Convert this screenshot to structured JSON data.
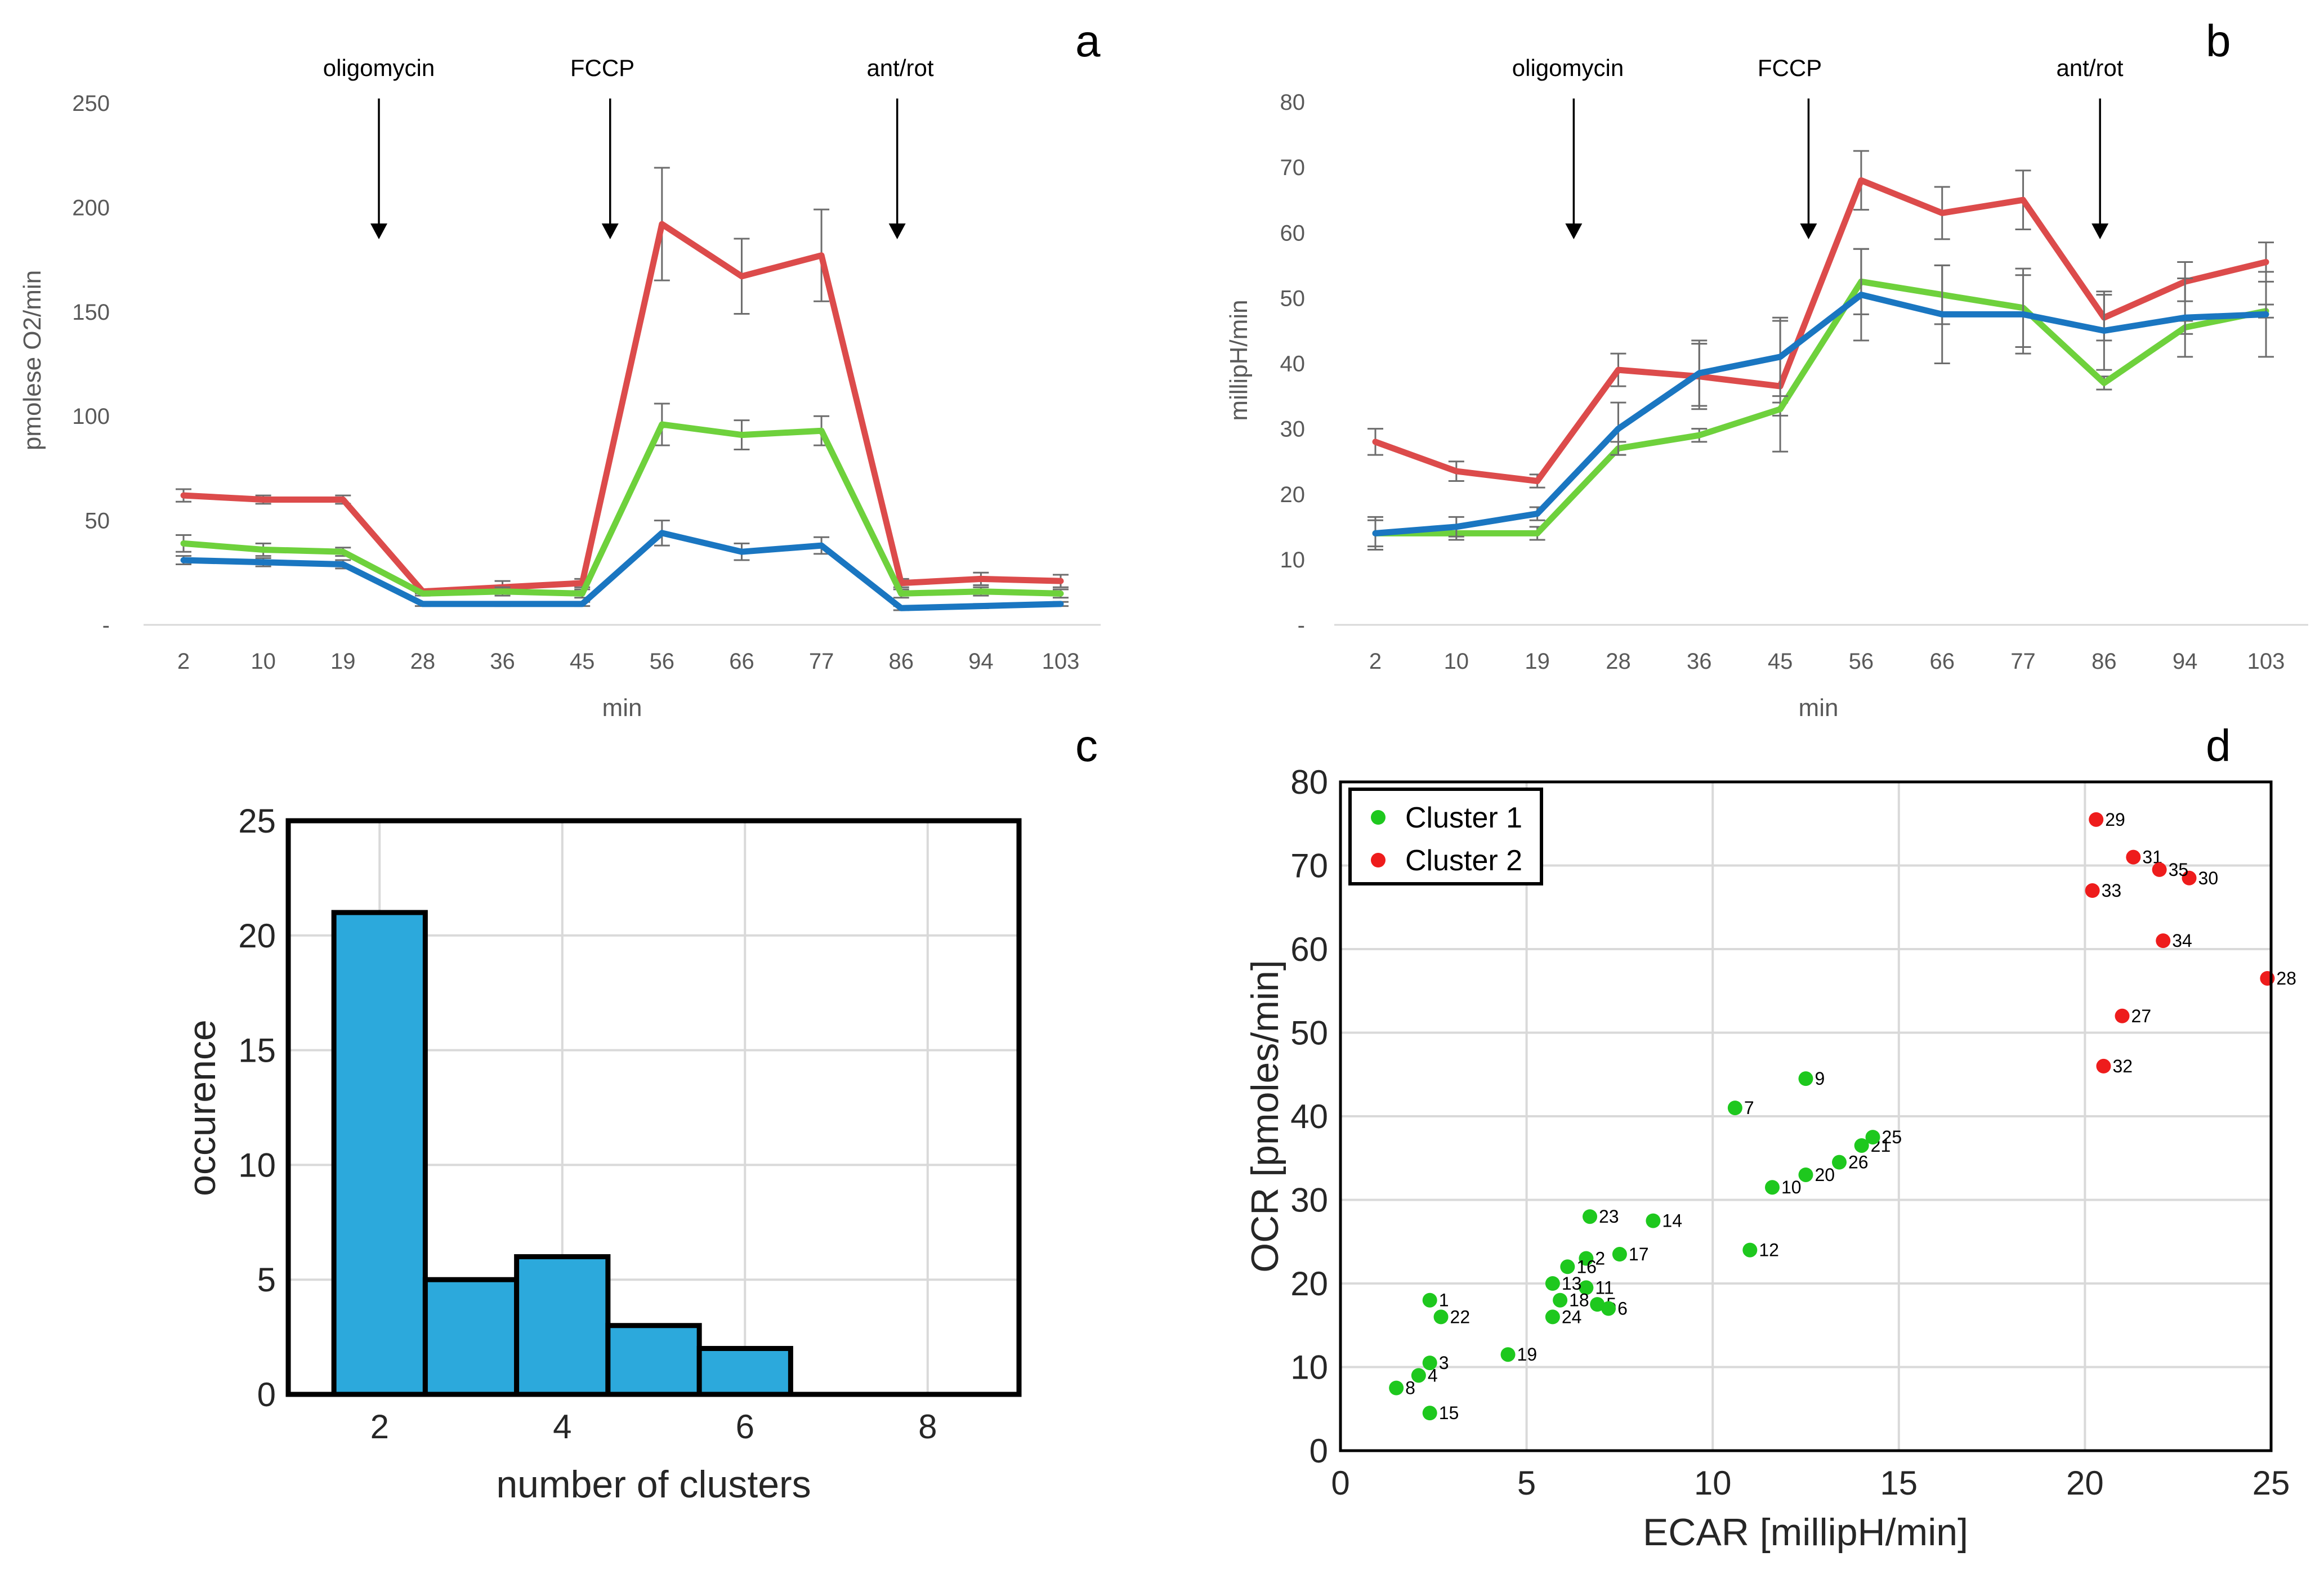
{
  "chart_data": [
    {
      "panel": "a",
      "type": "line",
      "xlabel": "min",
      "ylabel": "pmolese O2/min",
      "categories": [
        "2",
        "10",
        "19",
        "28",
        "36",
        "45",
        "56",
        "66",
        "77",
        "86",
        "94",
        "103"
      ],
      "ylim": [
        0,
        250
      ],
      "yticks": [
        "-",
        "50",
        "100",
        "150",
        "200",
        "250"
      ],
      "annotations": [
        "oligomycin",
        "FCCP",
        "ant/rot"
      ],
      "series": [
        {
          "color": "#dc4b4b",
          "values": [
            62,
            60,
            60,
            16,
            18,
            20,
            192,
            167,
            177,
            20,
            22,
            21
          ],
          "errors": [
            3,
            2,
            2,
            1,
            3,
            2,
            27,
            18,
            22,
            2,
            3,
            3
          ]
        },
        {
          "color": "#6ed13c",
          "values": [
            39,
            36,
            35,
            15,
            16,
            15,
            96,
            91,
            93,
            15,
            16,
            15
          ],
          "errors": [
            4,
            3,
            2,
            1,
            2,
            2,
            10,
            7,
            7,
            2,
            2,
            2
          ]
        },
        {
          "color": "#1a76c1",
          "values": [
            31,
            30,
            29,
            10,
            10,
            10,
            44,
            35,
            38,
            8,
            9,
            10
          ],
          "errors": [
            2,
            2,
            2,
            1,
            1,
            1,
            6,
            4,
            4,
            1,
            1,
            1
          ]
        }
      ]
    },
    {
      "panel": "b",
      "type": "line",
      "xlabel": "min",
      "ylabel": "millipH/min",
      "categories": [
        "2",
        "10",
        "19",
        "28",
        "36",
        "45",
        "56",
        "66",
        "77",
        "86",
        "94",
        "103"
      ],
      "ylim": [
        0,
        80
      ],
      "yticks": [
        "-",
        "10",
        "20",
        "30",
        "40",
        "50",
        "60",
        "70",
        "80"
      ],
      "annotations": [
        "oligomycin",
        "FCCP",
        "ant/rot"
      ],
      "series": [
        {
          "color": "#dc4b4b",
          "values": [
            28,
            23.5,
            22,
            39,
            38,
            36.5,
            68,
            63,
            65,
            47,
            52.5,
            55.5
          ],
          "errors": [
            2,
            1.5,
            1,
            2.5,
            5,
            10,
            4.5,
            4,
            4.5,
            3.5,
            3,
            3
          ]
        },
        {
          "color": "#6ed13c",
          "values": [
            14,
            14,
            14,
            27,
            29,
            33,
            52.5,
            50.5,
            48.5,
            37,
            45.5,
            48
          ],
          "errors": [
            2,
            1,
            1,
            1,
            1,
            1,
            5,
            4.5,
            6,
            1,
            1,
            1
          ]
        },
        {
          "color": "#1a76c1",
          "values": [
            14,
            15,
            17,
            30,
            38.5,
            41,
            50.5,
            47.5,
            47.5,
            45,
            47,
            47.5
          ],
          "errors": [
            2.5,
            1.5,
            1,
            4,
            5,
            6,
            7,
            7.5,
            6,
            6,
            6,
            6.5
          ]
        }
      ]
    },
    {
      "panel": "c",
      "type": "bar",
      "xlabel": "number of clusters",
      "ylabel": "occurence",
      "categories": [
        "2",
        "3",
        "4",
        "5",
        "6",
        "7"
      ],
      "values": [
        21,
        5,
        6,
        3,
        2,
        0
      ],
      "xlim": [
        1,
        9
      ],
      "xticks": [
        "2",
        "4",
        "6",
        "8"
      ],
      "ylim": [
        0,
        25
      ],
      "yticks": [
        "0",
        "5",
        "10",
        "15",
        "20",
        "25"
      ],
      "color": "#2ca9dc"
    },
    {
      "panel": "d",
      "type": "scatter",
      "xlabel": "ECAR [millipH/min]",
      "ylabel": "OCR [pmoles/min]",
      "xlim": [
        0,
        25
      ],
      "ylim": [
        0,
        80
      ],
      "xticks": [
        "0",
        "5",
        "10",
        "15",
        "20",
        "25"
      ],
      "yticks": [
        "0",
        "10",
        "20",
        "30",
        "40",
        "50",
        "60",
        "70",
        "80"
      ],
      "legend": [
        "Cluster 1",
        "Cluster 2"
      ],
      "series": [
        {
          "name": "Cluster 1",
          "color": "#1ec81e",
          "points": [
            {
              "label": "1",
              "x": 2.4,
              "y": 18
            },
            {
              "label": "2",
              "x": 6.6,
              "y": 23
            },
            {
              "label": "3",
              "x": 2.4,
              "y": 10.5
            },
            {
              "label": "4",
              "x": 2.1,
              "y": 9
            },
            {
              "label": "5",
              "x": 6.9,
              "y": 17.5
            },
            {
              "label": "6",
              "x": 7.2,
              "y": 17
            },
            {
              "label": "7",
              "x": 10.6,
              "y": 41
            },
            {
              "label": "8",
              "x": 1.5,
              "y": 7.5
            },
            {
              "label": "9",
              "x": 12.5,
              "y": 44.5
            },
            {
              "label": "10",
              "x": 11.6,
              "y": 31.5
            },
            {
              "label": "11",
              "x": 6.6,
              "y": 19.5
            },
            {
              "label": "12",
              "x": 11,
              "y": 24
            },
            {
              "label": "13",
              "x": 5.7,
              "y": 20
            },
            {
              "label": "14",
              "x": 8.4,
              "y": 27.5
            },
            {
              "label": "15",
              "x": 2.4,
              "y": 4.5
            },
            {
              "label": "16",
              "x": 6.1,
              "y": 22
            },
            {
              "label": "17",
              "x": 7.5,
              "y": 23.5
            },
            {
              "label": "18",
              "x": 5.9,
              "y": 18
            },
            {
              "label": "19",
              "x": 4.5,
              "y": 11.5
            },
            {
              "label": "20",
              "x": 12.5,
              "y": 33
            },
            {
              "label": "21",
              "x": 14,
              "y": 36.5
            },
            {
              "label": "22",
              "x": 2.7,
              "y": 16
            },
            {
              "label": "23",
              "x": 6.7,
              "y": 28
            },
            {
              "label": "24",
              "x": 5.7,
              "y": 16
            },
            {
              "label": "25",
              "x": 14.3,
              "y": 37.5
            },
            {
              "label": "26",
              "x": 13.4,
              "y": 34.5
            }
          ]
        },
        {
          "name": "Cluster 2",
          "color": "#ee1c1c",
          "points": [
            {
              "label": "27",
              "x": 21,
              "y": 52
            },
            {
              "label": "28",
              "x": 24.9,
              "y": 56.5
            },
            {
              "label": "29",
              "x": 20.3,
              "y": 75.5
            },
            {
              "label": "30",
              "x": 22.8,
              "y": 68.5
            },
            {
              "label": "31",
              "x": 21.3,
              "y": 71
            },
            {
              "label": "32",
              "x": 20.5,
              "y": 46
            },
            {
              "label": "33",
              "x": 20.2,
              "y": 67
            },
            {
              "label": "34",
              "x": 22.1,
              "y": 61
            },
            {
              "label": "35",
              "x": 22,
              "y": 69.5
            }
          ]
        }
      ]
    }
  ]
}
